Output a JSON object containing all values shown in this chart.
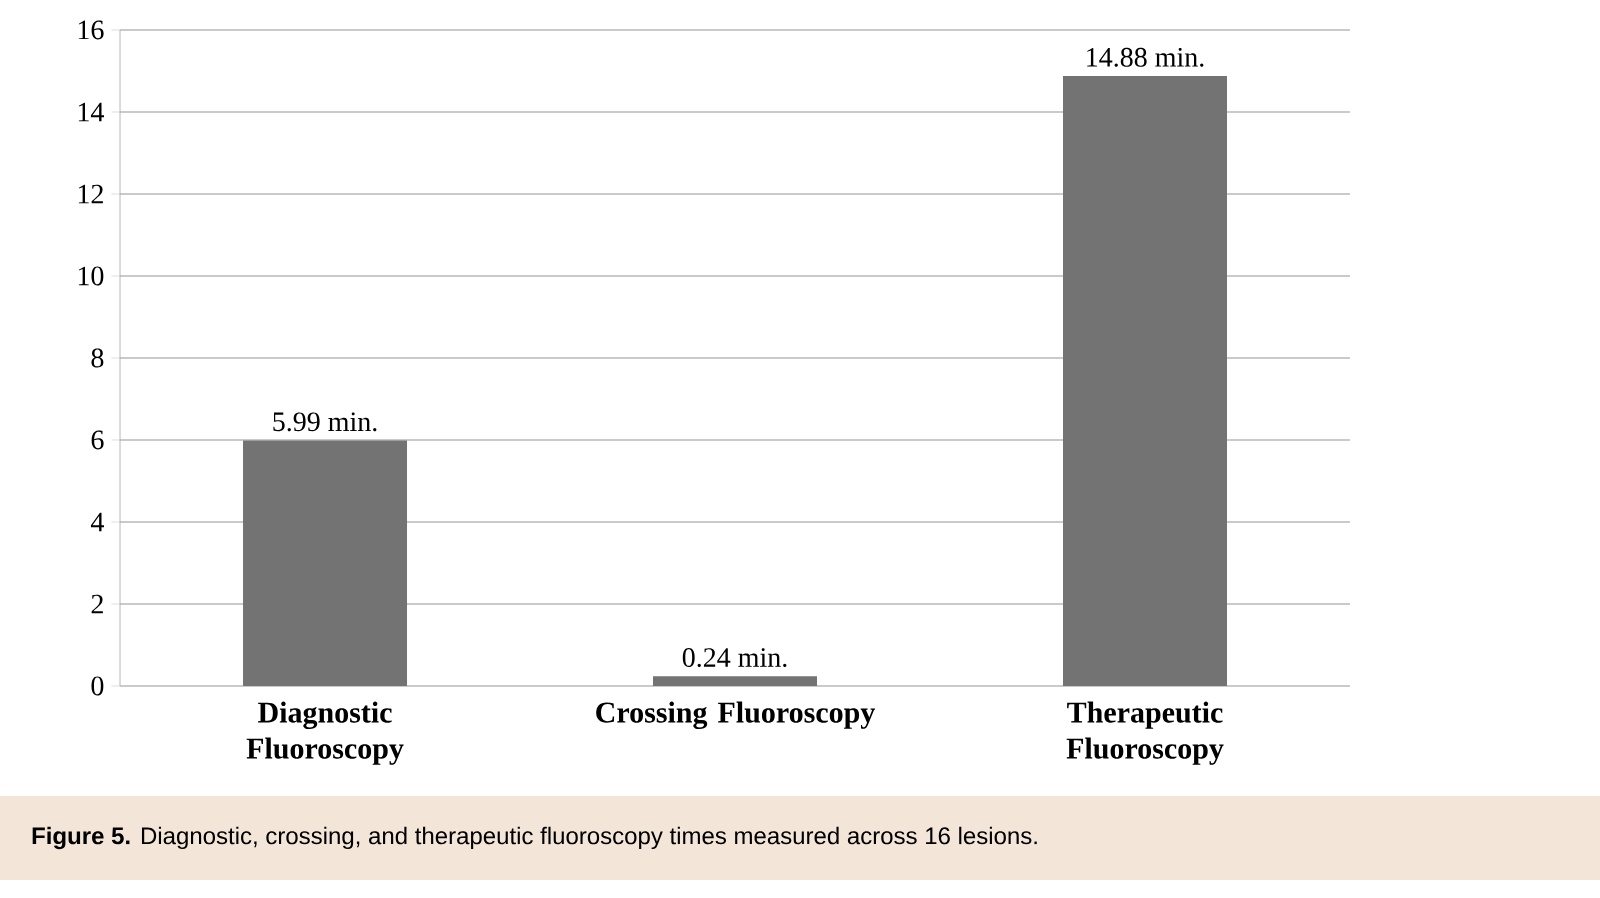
{
  "chart_data": {
    "type": "bar",
    "categories": [
      "Diagnostic Fluoroscopy",
      "Crossing Fluoroscopy",
      "Therapeutic Fluoroscopy"
    ],
    "values": [
      5.99,
      0.24,
      14.88
    ],
    "value_labels": [
      "5.99 min.",
      "0.24 min.",
      "14.88 min."
    ],
    "color": "#737373",
    "ylim": [
      0,
      16
    ],
    "yticks": [
      0,
      2,
      4,
      6,
      8,
      10,
      12,
      14,
      16
    ],
    "grid": "y",
    "annotations": [
      "**Figure 5.** Diagnostic, crossing, and therapeutic fluoroscopy times measured across 16 lesions."
    ]
  }
}
